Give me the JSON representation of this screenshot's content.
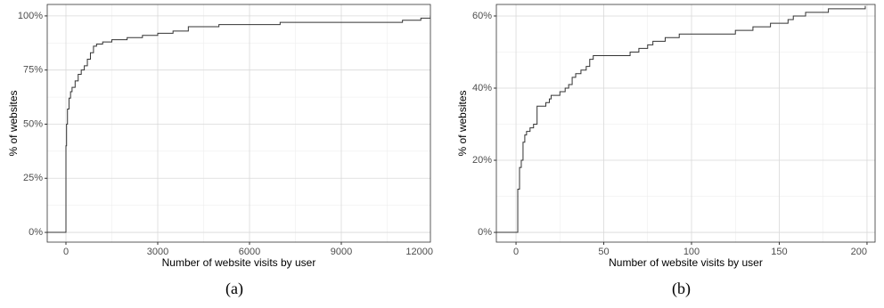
{
  "chart_data": [
    {
      "type": "step",
      "caption": "(a)",
      "x_label": "Number of website visits by user",
      "y_label": "% of websites",
      "x": [
        -612,
        0,
        0,
        20,
        50,
        100,
        150,
        200,
        300,
        400,
        500,
        600,
        700,
        800,
        900,
        1000,
        1200,
        1500,
        2000,
        2500,
        3000,
        3500,
        4000,
        5000,
        7000,
        11000,
        11600,
        11913
      ],
      "values": [
        0,
        0,
        40,
        50,
        57,
        62,
        65,
        67,
        70,
        73,
        75,
        77,
        80,
        83,
        86,
        87,
        88,
        89,
        90,
        91,
        92,
        93,
        95,
        96,
        97,
        98,
        99,
        100
      ],
      "color": "#333333",
      "xlim": [
        -612,
        11913
      ],
      "xticks": [
        0,
        3000,
        6000,
        9000,
        12000
      ],
      "ylim": [
        -4.5,
        105.3
      ],
      "yticks": [
        {
          "value": 0,
          "label": "0%"
        },
        {
          "value": 25,
          "label": "25%"
        },
        {
          "value": 50,
          "label": "50%"
        },
        {
          "value": 75,
          "label": "75%"
        },
        {
          "value": 100,
          "label": "100%"
        }
      ],
      "grid": true
    },
    {
      "type": "step",
      "caption": "(b)",
      "x_label": "Number of website visits by user",
      "y_label": "% of websites",
      "x": [
        -11.2,
        1,
        2,
        3,
        4,
        5,
        6,
        8,
        10,
        12,
        17,
        19,
        20,
        25,
        28,
        30,
        32,
        34,
        37,
        40,
        42,
        44,
        65,
        70,
        75,
        78,
        85,
        93,
        125,
        135,
        145,
        155,
        158,
        165,
        178,
        199
      ],
      "values": [
        0,
        12,
        18,
        20,
        25,
        27,
        28,
        29,
        30,
        35,
        36,
        37,
        38,
        39,
        40,
        41,
        43,
        44,
        45,
        46,
        48,
        49,
        50,
        51,
        52,
        53,
        54,
        55,
        56,
        57,
        58,
        59,
        60,
        61,
        62,
        62.8
      ],
      "color": "#333333",
      "xlim": [
        -11.2,
        204.6
      ],
      "xticks": [
        0,
        50,
        100,
        150,
        200
      ],
      "ylim": [
        -2.7,
        63.2
      ],
      "yticks": [
        {
          "value": 0,
          "label": "0%"
        },
        {
          "value": 20,
          "label": "20%"
        },
        {
          "value": 40,
          "label": "40%"
        },
        {
          "value": 60,
          "label": "60%"
        }
      ],
      "grid": true
    }
  ]
}
